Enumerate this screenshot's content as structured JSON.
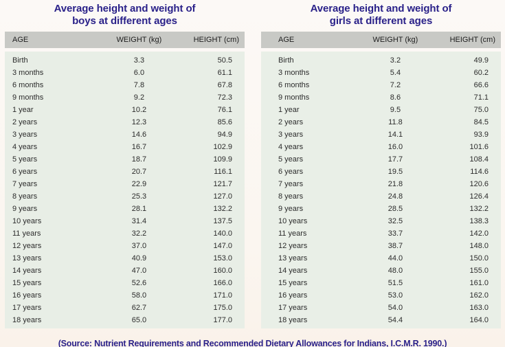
{
  "page": {
    "footer_text": "(Source: Nutrient Requirements and Recommended Dietary Allowances for Indians, I.C.M.R. 1990.)"
  },
  "colors": {
    "title_text": "#2a2189",
    "footer_text": "#2a2189",
    "header_bg": "#c8c9c5",
    "body_bg": "#e8eee6",
    "body_text": "#2b2b2b",
    "page_bg": "#fbf6f1"
  },
  "tables": [
    {
      "id": "boys",
      "title_line1": "Average height and weight of",
      "title_line2": "boys at different ages",
      "columns": [
        "AGE",
        "WEIGHT (kg)",
        "HEIGHT (cm)"
      ],
      "rows": [
        [
          "Birth",
          "3.3",
          "50.5"
        ],
        [
          "3 months",
          "6.0",
          "61.1"
        ],
        [
          "6 months",
          "7.8",
          "67.8"
        ],
        [
          "9 months",
          "9.2",
          "72.3"
        ],
        [
          "1 year",
          "10.2",
          "76.1"
        ],
        [
          "2 years",
          "12.3",
          "85.6"
        ],
        [
          "3 years",
          "14.6",
          "94.9"
        ],
        [
          "4 years",
          "16.7",
          "102.9"
        ],
        [
          "5 years",
          "18.7",
          "109.9"
        ],
        [
          "6 years",
          "20.7",
          "116.1"
        ],
        [
          "7 years",
          "22.9",
          "121.7"
        ],
        [
          "8 years",
          "25.3",
          "127.0"
        ],
        [
          "9 years",
          "28.1",
          "132.2"
        ],
        [
          "10 years",
          "31.4",
          "137.5"
        ],
        [
          "11 years",
          "32.2",
          "140.0"
        ],
        [
          "12 years",
          "37.0",
          "147.0"
        ],
        [
          "13 years",
          "40.9",
          "153.0"
        ],
        [
          "14 years",
          "47.0",
          "160.0"
        ],
        [
          "15 years",
          "52.6",
          "166.0"
        ],
        [
          "16 years",
          "58.0",
          "171.0"
        ],
        [
          "17 years",
          "62.7",
          "175.0"
        ],
        [
          "18 years",
          "65.0",
          "177.0"
        ]
      ]
    },
    {
      "id": "girls",
      "title_line1": "Average height and weight of",
      "title_line2": "girls at different ages",
      "columns": [
        "AGE",
        "WEIGHT (kg)",
        "HEIGHT (cm)"
      ],
      "rows": [
        [
          "Birth",
          "3.2",
          "49.9"
        ],
        [
          "3 months",
          "5.4",
          "60.2"
        ],
        [
          "6 months",
          "7.2",
          "66.6"
        ],
        [
          "9 months",
          "8.6",
          "71.1"
        ],
        [
          "1 year",
          "9.5",
          "75.0"
        ],
        [
          "2 years",
          "11.8",
          "84.5"
        ],
        [
          "3 years",
          "14.1",
          "93.9"
        ],
        [
          "4 years",
          "16.0",
          "101.6"
        ],
        [
          "5 years",
          "17.7",
          "108.4"
        ],
        [
          "6 years",
          "19.5",
          "114.6"
        ],
        [
          "7 years",
          "21.8",
          "120.6"
        ],
        [
          "8 years",
          "24.8",
          "126.4"
        ],
        [
          "9 years",
          "28.5",
          "132.2"
        ],
        [
          "10 years",
          "32.5",
          "138.3"
        ],
        [
          "11 years",
          "33.7",
          "142.0"
        ],
        [
          "12 years",
          "38.7",
          "148.0"
        ],
        [
          "13 years",
          "44.0",
          "150.0"
        ],
        [
          "14 years",
          "48.0",
          "155.0"
        ],
        [
          "15 years",
          "51.5",
          "161.0"
        ],
        [
          "16 years",
          "53.0",
          "162.0"
        ],
        [
          "17 years",
          "54.0",
          "163.0"
        ],
        [
          "18 years",
          "54.4",
          "164.0"
        ]
      ]
    }
  ]
}
